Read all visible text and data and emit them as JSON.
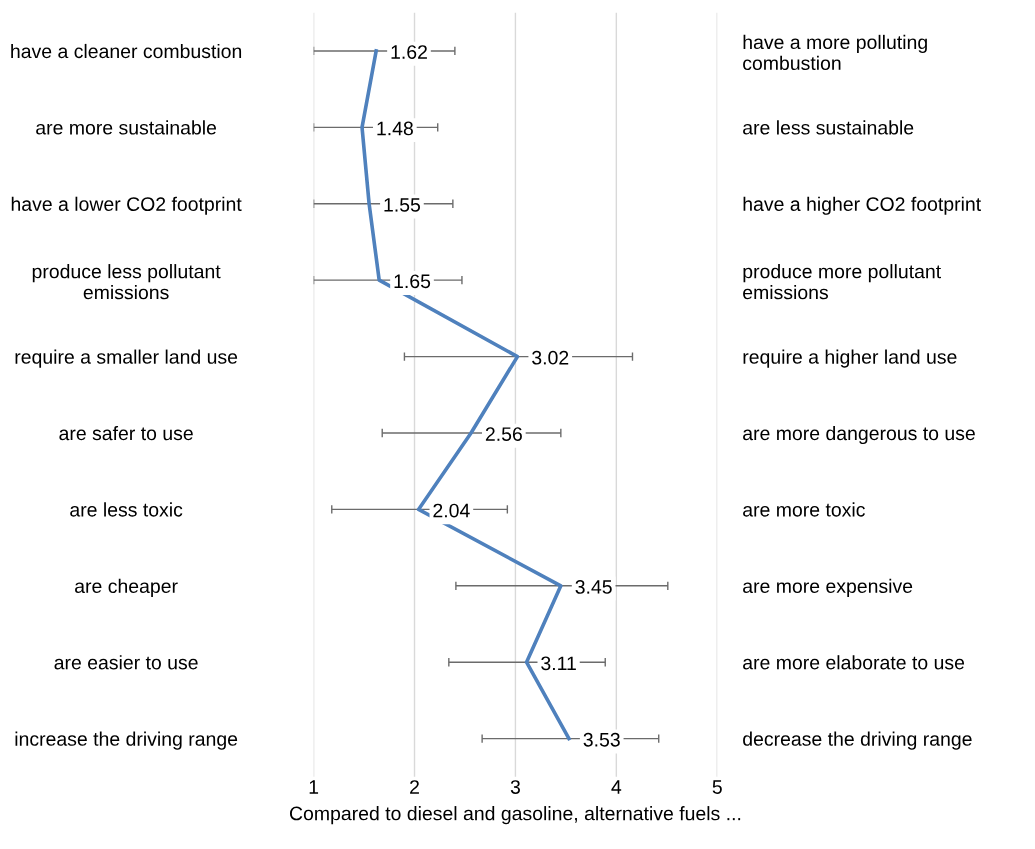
{
  "chart_data": {
    "type": "line",
    "orientation": "horizontal",
    "xlabel": "Compared to diesel and gasoline, alternative fuels ...",
    "categories": [
      "have a cleaner combustion",
      "are more sustainable",
      "have a lower CO2 footprint",
      "produce less pollutant\nemissions",
      "require a smaller land use",
      "are safer to use",
      "are less toxic",
      "are cheaper",
      "are easier to use",
      "increase the driving range"
    ],
    "y2_categories": [
      "have a more polluting\ncombustion",
      "are less sustainable",
      "have a higher CO2 footprint",
      "produce more pollutant\nemissions",
      "require a higher land use",
      "are more dangerous to use",
      "are more toxic",
      "are more expensive",
      "are more elaborate to use",
      "decrease the driving range"
    ],
    "series": [
      {
        "color": "#4f81bd",
        "values": [
          1.62,
          1.48,
          1.55,
          1.65,
          3.02,
          2.56,
          2.04,
          3.45,
          3.11,
          3.53
        ],
        "errors": [
          [
            1.0,
            2.4
          ],
          [
            1.0,
            2.23
          ],
          [
            1.0,
            2.38
          ],
          [
            1.0,
            2.47
          ],
          [
            1.9,
            4.16
          ],
          [
            1.68,
            3.45
          ],
          [
            1.18,
            2.92
          ],
          [
            2.41,
            4.51
          ],
          [
            2.34,
            3.89
          ],
          [
            2.67,
            4.42
          ]
        ]
      }
    ],
    "data_labels": true,
    "xlim": [
      1,
      5
    ],
    "xticks": [
      1,
      2,
      3,
      4,
      5
    ],
    "grid": "x",
    "marker": "none",
    "line_style": "solid",
    "legend": false
  }
}
